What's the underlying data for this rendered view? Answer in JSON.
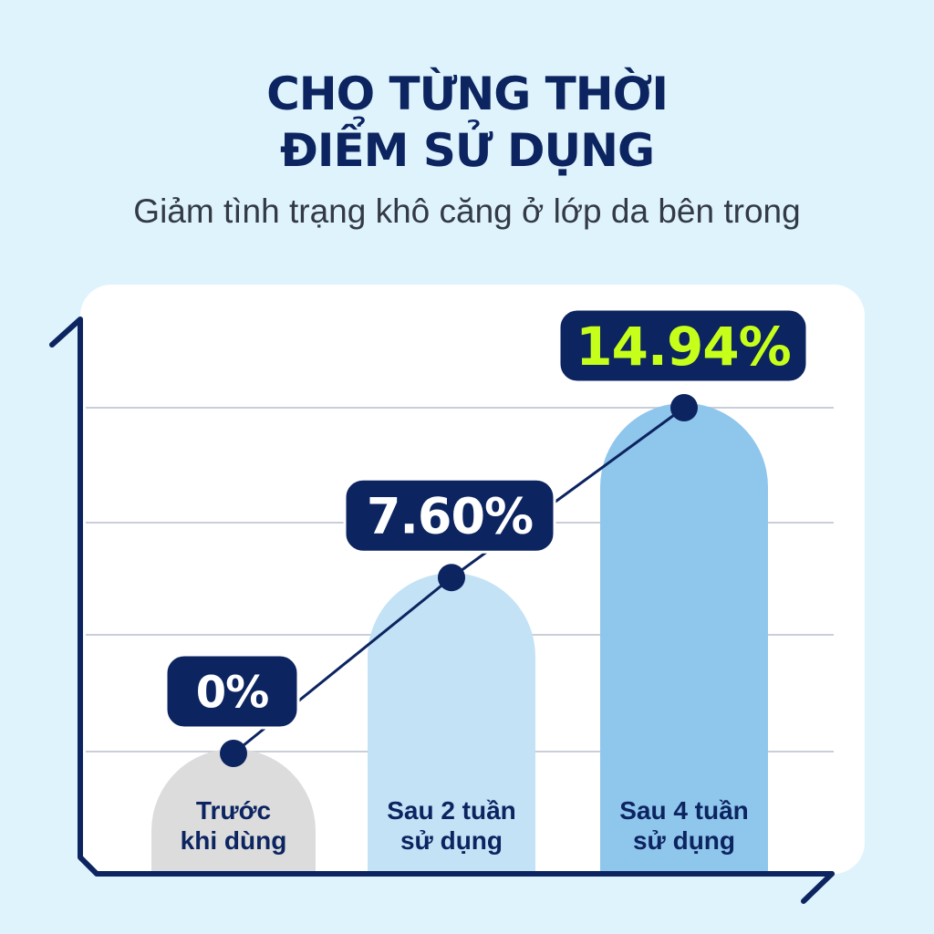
{
  "header": {
    "title_lines": [
      "CHO TỪNG THỜI",
      "ĐIỂM SỬ DỤNG"
    ],
    "subtitle": "Giảm tình trạng khô căng ở lớp da bên trong"
  },
  "chart_data": {
    "type": "bar",
    "categories": [
      [
        "Trước",
        "khi dùng"
      ],
      [
        "Sau 2 tuần",
        "sử dụng"
      ],
      [
        "Sau 4 tuần",
        "sử dụng"
      ]
    ],
    "values": [
      0,
      7.6,
      14.94
    ],
    "value_labels": [
      "0%",
      "7.60%",
      "14.94%"
    ],
    "overlay_line": true,
    "grid": true,
    "colors": {
      "bars": [
        "#dcdcdc",
        "#c3e2f6",
        "#8fc6ec"
      ],
      "line": "#0c2460",
      "label_bg": "#0c2460",
      "label_text": "#ffffff",
      "highlight_text": "#c6ff1a",
      "axis": "#0c2460"
    }
  }
}
